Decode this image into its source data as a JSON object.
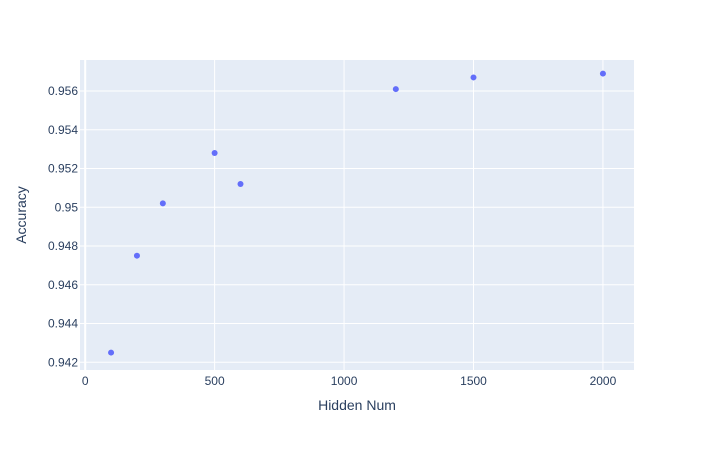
{
  "chart_data": {
    "type": "scatter",
    "title": "",
    "xlabel": "Hidden Num",
    "ylabel": "Accuracy",
    "xlim": [
      -20,
      2120
    ],
    "ylim": [
      0.9416,
      0.9576
    ],
    "x_ticks": [
      0,
      500,
      1000,
      1500,
      2000
    ],
    "x_tick_labels": [
      "0",
      "500",
      "1000",
      "1500",
      "2000"
    ],
    "y_ticks": [
      0.942,
      0.944,
      0.946,
      0.948,
      0.95,
      0.952,
      0.954,
      0.956
    ],
    "y_tick_labels": [
      "0.942",
      "0.944",
      "0.946",
      "0.948",
      "0.95",
      "0.952",
      "0.954",
      "0.956"
    ],
    "grid": true,
    "legend": "none",
    "colors": {
      "plot_bg": "#e5ecf6",
      "grid": "#ffffff",
      "marker": "#636efa",
      "text": "#2a3f5f"
    },
    "series": [
      {
        "x": [
          100,
          200,
          300,
          500,
          600,
          1200,
          1500,
          2000
        ],
        "y": [
          0.9425,
          0.9475,
          0.9502,
          0.9528,
          0.9512,
          0.9561,
          0.9567,
          0.9569
        ]
      }
    ]
  }
}
